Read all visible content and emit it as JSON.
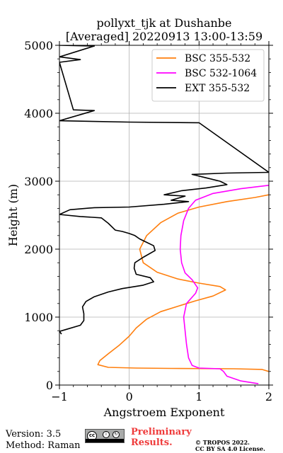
{
  "chart_data": {
    "type": "line",
    "title": [
      "pollyxt_tjk at Dushanbe",
      "[Averaged] 20220913 13:00-13:59"
    ],
    "xlabel": "Angstroem Exponent",
    "ylabel": "Height (m)",
    "xlim": [
      -1,
      2
    ],
    "ylim": [
      0,
      5000
    ],
    "xticks": [
      -1,
      0,
      1,
      2
    ],
    "xtick_labels": [
      "−1",
      "0",
      "1",
      "2"
    ],
    "yticks": [
      0,
      1000,
      2000,
      3000,
      4000,
      5000
    ],
    "ytick_labels": [
      "0",
      "1000",
      "2000",
      "3000",
      "4000",
      "5000"
    ],
    "grid": true,
    "legend_position": "top-right",
    "series": [
      {
        "name": "BSC 355-532",
        "color": "#ff7f0e",
        "points": [
          [
            2.0,
            200
          ],
          [
            1.9,
            230
          ],
          [
            1.5,
            240
          ],
          [
            0.6,
            245
          ],
          [
            0.1,
            250
          ],
          [
            -0.3,
            260
          ],
          [
            -0.45,
            300
          ],
          [
            -0.42,
            360
          ],
          [
            -0.3,
            460
          ],
          [
            -0.15,
            580
          ],
          [
            0.0,
            720
          ],
          [
            0.1,
            840
          ],
          [
            0.25,
            970
          ],
          [
            0.45,
            1080
          ],
          [
            0.7,
            1160
          ],
          [
            0.95,
            1240
          ],
          [
            1.2,
            1310
          ],
          [
            1.38,
            1400
          ],
          [
            1.3,
            1450
          ],
          [
            1.0,
            1500
          ],
          [
            0.7,
            1560
          ],
          [
            0.4,
            1660
          ],
          [
            0.2,
            1800
          ],
          [
            0.15,
            2000
          ],
          [
            0.25,
            2200
          ],
          [
            0.45,
            2390
          ],
          [
            0.7,
            2530
          ],
          [
            1.0,
            2620
          ],
          [
            1.4,
            2700
          ],
          [
            1.8,
            2760
          ],
          [
            2.0,
            2800
          ]
        ]
      },
      {
        "name": "BSC 532-1064",
        "color": "#ff00ff",
        "points": [
          [
            1.85,
            20
          ],
          [
            1.6,
            60
          ],
          [
            1.4,
            130
          ],
          [
            1.35,
            200
          ],
          [
            1.3,
            240
          ],
          [
            1.0,
            250
          ],
          [
            0.9,
            290
          ],
          [
            0.85,
            400
          ],
          [
            0.82,
            600
          ],
          [
            0.8,
            800
          ],
          [
            0.78,
            1000
          ],
          [
            0.82,
            1200
          ],
          [
            0.95,
            1350
          ],
          [
            0.98,
            1430
          ],
          [
            0.9,
            1550
          ],
          [
            0.8,
            1650
          ],
          [
            0.75,
            1800
          ],
          [
            0.73,
            2000
          ],
          [
            0.74,
            2200
          ],
          [
            0.78,
            2420
          ],
          [
            0.85,
            2600
          ],
          [
            0.95,
            2720
          ],
          [
            1.2,
            2820
          ],
          [
            1.6,
            2890
          ],
          [
            2.0,
            2940
          ]
        ]
      },
      {
        "name": "EXT 355-532",
        "color": "#000000",
        "points": [
          [
            -0.97,
            750
          ],
          [
            -1.0,
            790
          ],
          [
            -0.9,
            820
          ],
          [
            -0.7,
            880
          ],
          [
            -0.65,
            950
          ],
          [
            -0.65,
            1050
          ],
          [
            -0.67,
            1150
          ],
          [
            -0.62,
            1230
          ],
          [
            -0.5,
            1300
          ],
          [
            -0.3,
            1370
          ],
          [
            -0.1,
            1420
          ],
          [
            0.2,
            1470
          ],
          [
            0.35,
            1520
          ],
          [
            0.3,
            1580
          ],
          [
            0.1,
            1630
          ],
          [
            0.07,
            1720
          ],
          [
            0.08,
            1800
          ],
          [
            0.2,
            1880
          ],
          [
            0.37,
            1980
          ],
          [
            0.35,
            2050
          ],
          [
            0.25,
            2100
          ],
          [
            0.15,
            2150
          ],
          [
            0.08,
            2200
          ],
          [
            0.0,
            2230
          ],
          [
            -0.1,
            2260
          ],
          [
            -0.2,
            2280
          ],
          [
            -0.3,
            2380
          ],
          [
            -0.4,
            2460
          ],
          [
            -0.7,
            2480
          ],
          [
            -1.0,
            2510
          ],
          [
            -0.85,
            2580
          ],
          [
            -0.5,
            2610
          ],
          [
            0.0,
            2620
          ],
          [
            0.5,
            2660
          ],
          [
            0.85,
            2700
          ],
          [
            0.6,
            2720
          ],
          [
            0.8,
            2780
          ],
          [
            0.5,
            2800
          ],
          [
            0.75,
            2860
          ],
          [
            1.1,
            2900
          ],
          [
            1.4,
            2950
          ],
          [
            1.3,
            3000
          ],
          [
            1.1,
            3050
          ],
          [
            0.9,
            3100
          ],
          [
            1.4,
            3120
          ],
          [
            2.0,
            3130
          ],
          [
            1.0,
            3860
          ],
          [
            0.0,
            3870
          ],
          [
            -1.0,
            3890
          ],
          [
            -0.5,
            4040
          ],
          [
            -0.8,
            4050
          ],
          [
            -1.0,
            4750
          ],
          [
            -0.7,
            4790
          ],
          [
            -1.0,
            4830
          ],
          [
            -0.5,
            4990
          ],
          [
            -1.0,
            5000
          ]
        ]
      }
    ]
  },
  "footer": {
    "version": "Version: 3.5",
    "method": "Method: Raman",
    "preliminary_line1": "Preliminary",
    "preliminary_line2": "Results.",
    "copyright_line1": "© TROPOS 2022.",
    "copyright_line2": "CC BY SA 4.0 License."
  }
}
